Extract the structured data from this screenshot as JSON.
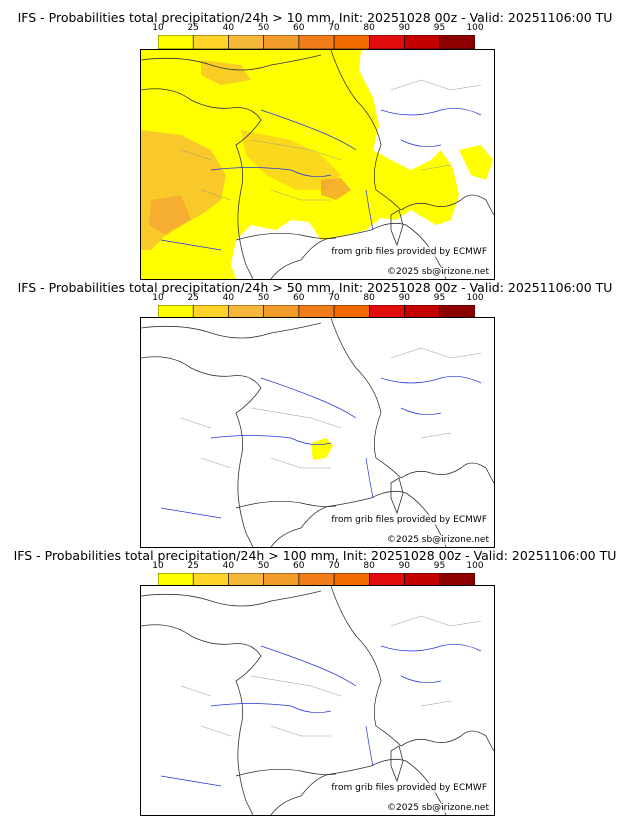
{
  "colorbar": {
    "levels": [
      "10",
      "25",
      "40",
      "50",
      "60",
      "70",
      "80",
      "90",
      "95",
      "100"
    ],
    "colors": [
      "#ffff00",
      "#ffd32a",
      "#f5b73a",
      "#f29c2b",
      "#f07c1a",
      "#ef6a00",
      "#e10d0d",
      "#c40000",
      "#8c0000",
      "#5a0000"
    ]
  },
  "credits": {
    "source": "from grib files provided by ECMWF",
    "copyright": "©2025 sb@irizone.net"
  },
  "panels": [
    {
      "title": "IFS - Probabilities total precipitation/24h > 10 mm, Init: 20251028 00z - Valid: 20251106:00 TU"
    },
    {
      "title": "IFS - Probabilities total precipitation/24h > 50 mm, Init: 20251028 00z - Valid: 20251106:00 TU"
    },
    {
      "title": "IFS - Probabilities total precipitation/24h > 100 mm, Init: 20251028 00z - Valid: 20251106:00 TU"
    }
  ]
}
